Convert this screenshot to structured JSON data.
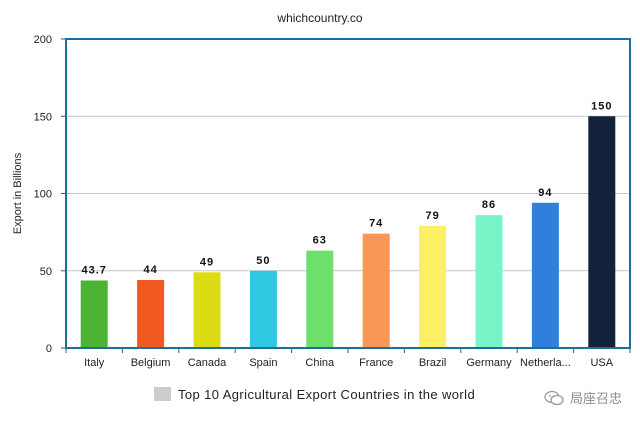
{
  "chart_data": {
    "type": "bar",
    "title": "whichcountry.co",
    "ylabel": "Export in Billions",
    "xlabel": "",
    "ylim": [
      0,
      200
    ],
    "yticks": [
      0,
      50,
      100,
      150,
      200
    ],
    "grid": true,
    "legend_position": "bottom",
    "categories": [
      "Italy",
      "Belgium",
      "Canada",
      "Spain",
      "China",
      "France",
      "Brazil",
      "Germany",
      "Netherla...",
      "USA"
    ],
    "series": [
      {
        "name": "Top 10 Agricultural Export Countries in the world",
        "values": [
          43.7,
          44,
          49,
          50,
          63,
          74,
          79,
          86,
          94,
          150
        ],
        "labels": [
          "43.7",
          "44",
          "49",
          "50",
          "63",
          "74",
          "79",
          "86",
          "94",
          "150"
        ]
      }
    ],
    "colors": [
      "#4db335",
      "#f05a22",
      "#dcdc14",
      "#2ec8e0",
      "#6ddf6d",
      "#fa9656",
      "#fcef64",
      "#78f5c6",
      "#2f7fdb",
      "#11223a"
    ],
    "legend_swatch_color": "#cccccc",
    "axis_frame_color": "#1a6fa0"
  },
  "watermark": {
    "text": "局座召忠",
    "icon": "wechat-icon"
  }
}
